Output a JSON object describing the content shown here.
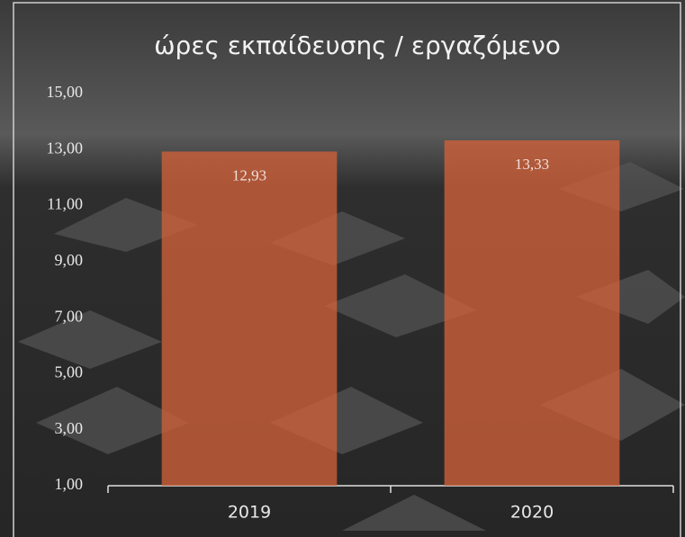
{
  "chart_data": {
    "type": "bar",
    "title": "ώρες εκπαίδευσης / εργαζόμενο",
    "categories": [
      "2019",
      "2020"
    ],
    "values": [
      12.93,
      13.33
    ],
    "value_labels": [
      "12,93",
      "13,33"
    ],
    "color": "#d0603a",
    "ylim": [
      1,
      15
    ],
    "yticks": [
      {
        "value": 1,
        "label": "1,00"
      },
      {
        "value": 3,
        "label": "3,00"
      },
      {
        "value": 5,
        "label": "5,00"
      },
      {
        "value": 7,
        "label": "7,00"
      },
      {
        "value": 9,
        "label": "9,00"
      },
      {
        "value": 11,
        "label": "11,00"
      },
      {
        "value": 13,
        "label": "13,00"
      },
      {
        "value": 15,
        "label": "15,00"
      }
    ],
    "grid": false
  }
}
